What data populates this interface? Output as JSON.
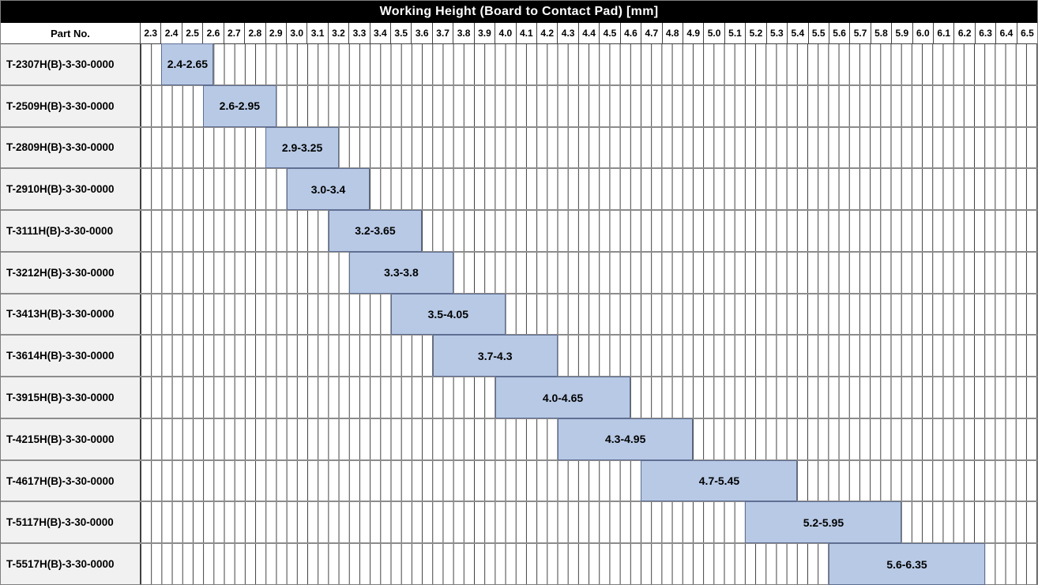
{
  "title": "Working Height (Board to Contact Pad) [mm]",
  "columns": {
    "part_header": "Part No."
  },
  "axis": {
    "min": 2.3,
    "max": 6.6,
    "step": 0.1,
    "minor_divisions_per_step": 2,
    "ticks": [
      "2.3",
      "2.4",
      "2.5",
      "2.6",
      "2.7",
      "2.8",
      "2.9",
      "3.0",
      "3.1",
      "3.2",
      "3.3",
      "3.4",
      "3.5",
      "3.6",
      "3.7",
      "3.8",
      "3.9",
      "4.0",
      "4.1",
      "4.2",
      "4.3",
      "4.4",
      "4.5",
      "4.6",
      "4.7",
      "4.8",
      "4.9",
      "5.0",
      "5.1",
      "5.2",
      "5.3",
      "5.4",
      "5.5",
      "5.6",
      "5.7",
      "5.8",
      "5.9",
      "6.0",
      "6.1",
      "6.2",
      "6.3",
      "6.4",
      "6.5"
    ]
  },
  "chart_data": {
    "type": "bar",
    "subtype": "horizontal-range-gantt",
    "title": "Working Height (Board to Contact Pad) [mm]",
    "axis_range": [
      2.3,
      6.6
    ],
    "grid": "on",
    "rows": [
      {
        "part": "T-2307H(B)-3-30-0000",
        "range_label": "2.4-2.65",
        "start": 2.4,
        "end": 2.65
      },
      {
        "part": "T-2509H(B)-3-30-0000",
        "range_label": "2.6-2.95",
        "start": 2.6,
        "end": 2.95
      },
      {
        "part": "T-2809H(B)-3-30-0000",
        "range_label": "2.9-3.25",
        "start": 2.9,
        "end": 3.25
      },
      {
        "part": "T-2910H(B)-3-30-0000",
        "range_label": "3.0-3.4",
        "start": 3.0,
        "end": 3.4
      },
      {
        "part": "T-3111H(B)-3-30-0000",
        "range_label": "3.2-3.65",
        "start": 3.2,
        "end": 3.65
      },
      {
        "part": "T-3212H(B)-3-30-0000",
        "range_label": "3.3-3.8",
        "start": 3.3,
        "end": 3.8
      },
      {
        "part": "T-3413H(B)-3-30-0000",
        "range_label": "3.5-4.05",
        "start": 3.5,
        "end": 4.05
      },
      {
        "part": "T-3614H(B)-3-30-0000",
        "range_label": "3.7-4.3",
        "start": 3.7,
        "end": 4.3
      },
      {
        "part": "T-3915H(B)-3-30-0000",
        "range_label": "4.0-4.65",
        "start": 4.0,
        "end": 4.65
      },
      {
        "part": "T-4215H(B)-3-30-0000",
        "range_label": "4.3-4.95",
        "start": 4.3,
        "end": 4.95
      },
      {
        "part": "T-4617H(B)-3-30-0000",
        "range_label": "4.7-5.45",
        "start": 4.7,
        "end": 5.45
      },
      {
        "part": "T-5117H(B)-3-30-0000",
        "range_label": "5.2-5.95",
        "start": 5.2,
        "end": 5.95
      },
      {
        "part": "T-5517H(B)-3-30-0000",
        "range_label": "5.6-6.35",
        "start": 5.6,
        "end": 6.35
      }
    ]
  },
  "colors": {
    "title_bg": "#000000",
    "title_fg": "#ffffff",
    "bar_fill": "#b7c9e5",
    "bar_border": "#5f6f93",
    "part_cell_bg": "#f1f1f1",
    "grid_line": "#3f3f3f",
    "row_separator": "#8c8c8c"
  }
}
